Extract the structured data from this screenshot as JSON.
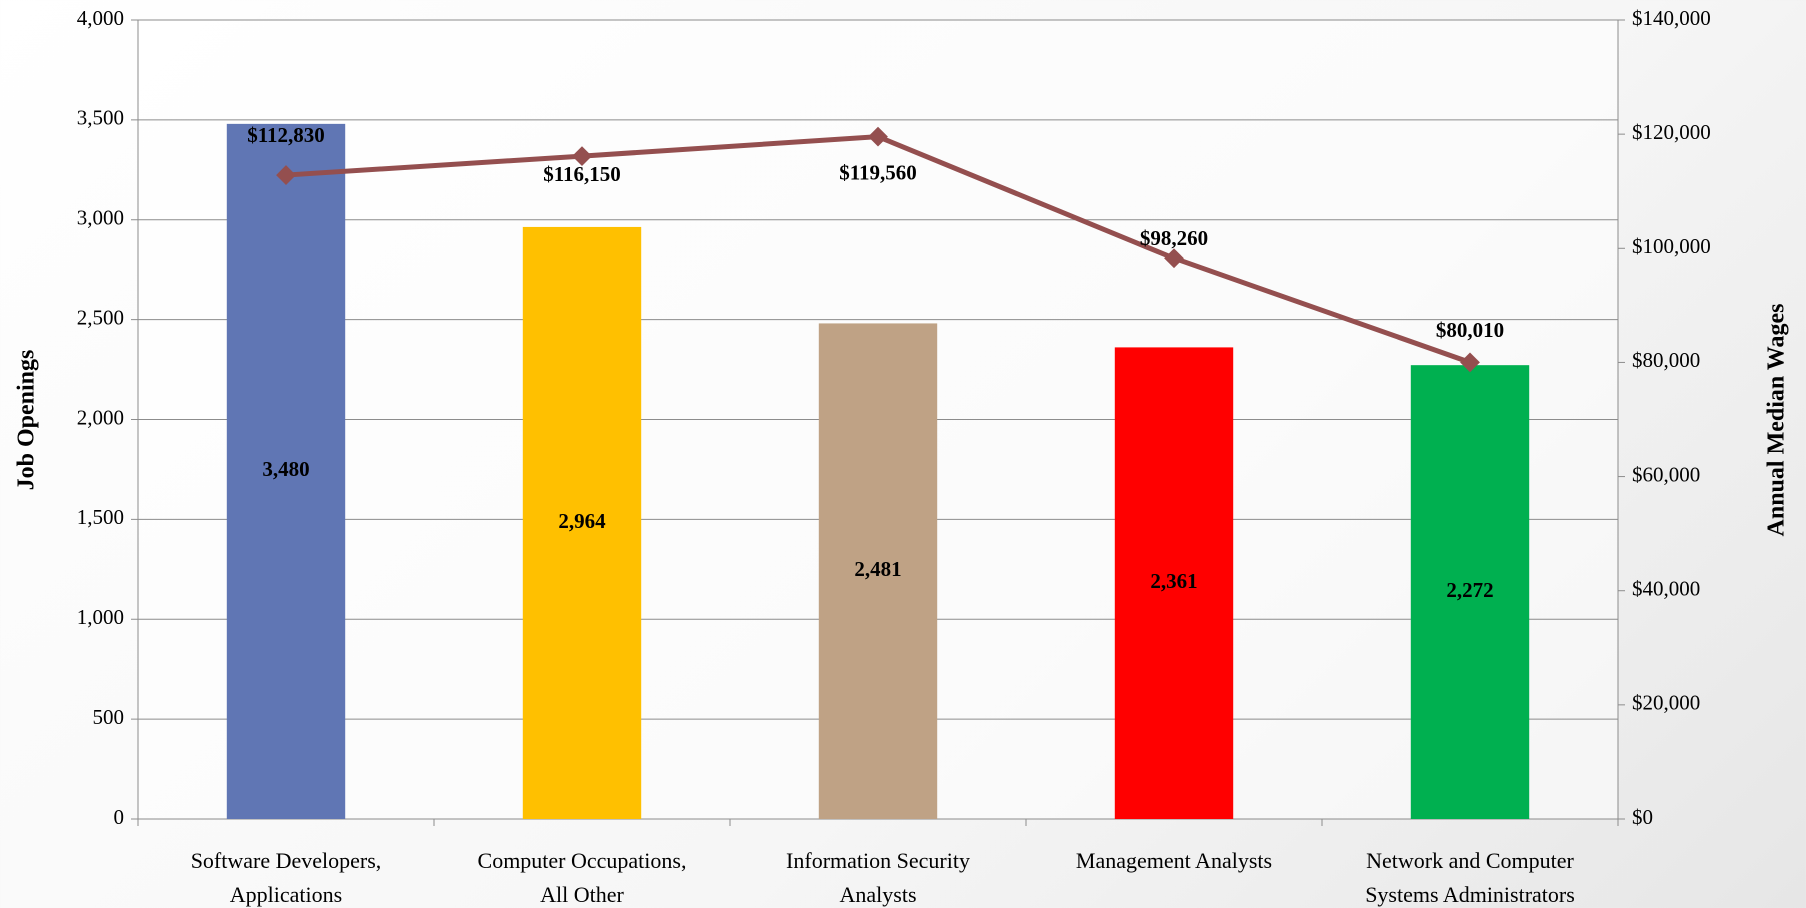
{
  "chart_data": {
    "type": "bar",
    "categories": [
      "Software Developers, Applications",
      "Computer Occupations, All Other",
      "Information Security Analysts",
      "Management Analysts",
      "Network and Computer Systems Administrators"
    ],
    "y_label": "Job Openings",
    "y2_label": "Annual Median Wages",
    "series": [
      {
        "type": "bar",
        "colors": [
          "#6076b4",
          "#ffc000",
          "#bfa285",
          "#ff0000",
          "#00b050"
        ],
        "values": [
          3480,
          2964,
          2481,
          2361,
          2272
        ],
        "value_labels": [
          "3,480",
          "2,964",
          "2,481",
          "2,361",
          "2,272"
        ]
      },
      {
        "type": "line",
        "axis": "y2",
        "color": "#944f4f",
        "values": [
          112830,
          116150,
          119560,
          98260,
          80010
        ],
        "value_labels": [
          "$112,830",
          "$116,150",
          "$119,560",
          "$98,260",
          "$80,010"
        ]
      }
    ],
    "ylim": [
      0,
      4000
    ],
    "yticks": [
      0,
      500,
      {
        "value": 1000,
        "label": "1,000"
      },
      {
        "value": 1500,
        "label": "1,500"
      },
      {
        "value": 2000,
        "label": "2,000"
      },
      {
        "value": 2500,
        "label": "2,500"
      },
      {
        "value": 3000,
        "label": "3,000"
      },
      {
        "value": 3500,
        "label": "3,500"
      },
      {
        "value": 4000,
        "label": "4,000"
      }
    ],
    "y2lim": [
      0,
      140000
    ],
    "y2ticks": [
      {
        "value": 0,
        "label": "$0"
      },
      {
        "value": 20000,
        "label": "$20,000"
      },
      {
        "value": 40000,
        "label": "$40,000"
      },
      {
        "value": 60000,
        "label": "$60,000"
      },
      {
        "value": 80000,
        "label": "$80,000"
      },
      {
        "value": 100000,
        "label": "$100,000"
      },
      {
        "value": 120000,
        "label": "$120,000"
      },
      {
        "value": 140000,
        "label": "$140,000"
      }
    ],
    "grid": true
  }
}
